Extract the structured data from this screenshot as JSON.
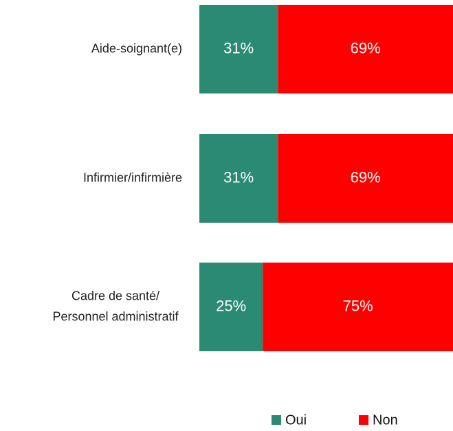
{
  "chart_data": {
    "type": "stacked-bar-horizontal",
    "categories": [
      "Aide-soignant(e)",
      "Infirmier/infirmière",
      "Cadre de santé/\nPersonnel administratif"
    ],
    "series": [
      {
        "name": "Oui",
        "color": "#2a8a72",
        "values": [
          31,
          31,
          25
        ],
        "value_labels": [
          "31%",
          "31%",
          "25%"
        ]
      },
      {
        "name": "Non",
        "color": "#ff0000",
        "values": [
          69,
          69,
          75
        ],
        "value_labels": [
          "69%",
          "69%",
          "75%"
        ]
      }
    ],
    "legend": "bottom"
  }
}
